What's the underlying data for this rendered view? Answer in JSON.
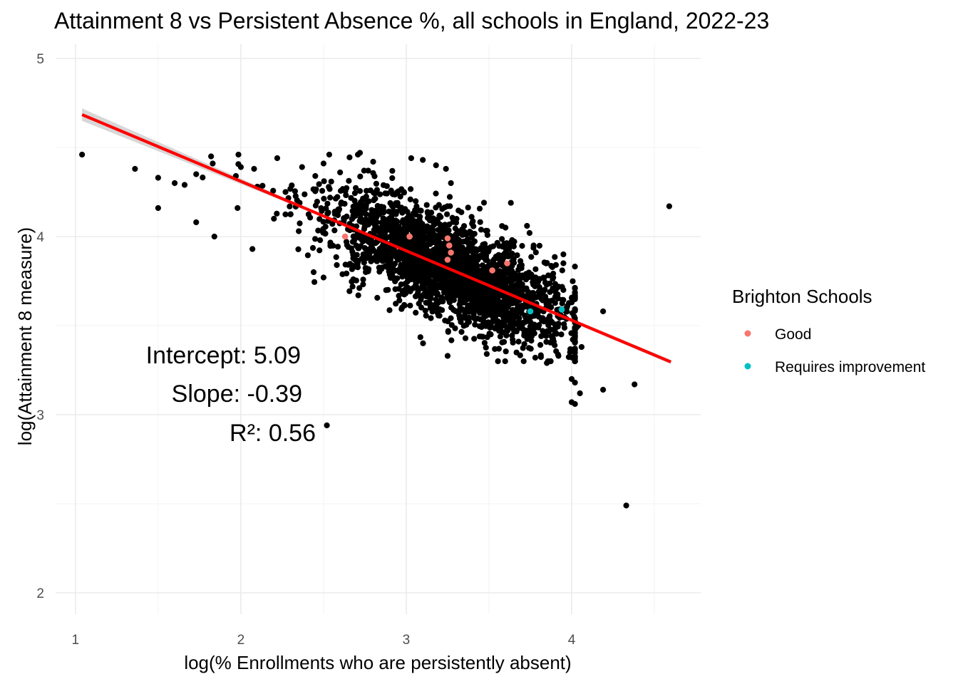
{
  "chart_data": {
    "type": "scatter",
    "title": "Attainment 8 vs Persistent Absence %, all schools in England, 2022-23",
    "xlabel": "log(% Enrollments who are persistently absent)",
    "ylabel": "log(Attainment 8 measure)",
    "xlim": [
      0.88,
      4.78
    ],
    "ylim": [
      1.88,
      5.08
    ],
    "x_ticks": [
      "1",
      "2",
      "3",
      "4"
    ],
    "y_ticks": [
      "2",
      "3",
      "4",
      "5"
    ],
    "x_tick_values": [
      1,
      2,
      3,
      4
    ],
    "y_tick_values": [
      2,
      3,
      4,
      5
    ],
    "grid": true,
    "legend": {
      "title": "Brighton Schools",
      "position": "right",
      "entries": [
        {
          "label": "Good",
          "color": "#F8766D"
        },
        {
          "label": "Requires improvement",
          "color": "#00BFC4"
        }
      ]
    },
    "regression": {
      "intercept": 5.09,
      "slope": -0.39,
      "x_range": [
        1.04,
        4.6
      ],
      "color": "#ff0000",
      "band_color": "#bdbdbd"
    },
    "annotations": {
      "intercept": "Intercept: 5.09",
      "slope": "Slope: -0.39",
      "r2": "R²: 0.56"
    },
    "cloud": {
      "n": 2600,
      "x_mean": 3.28,
      "x_sd": 0.36,
      "residual_sd": 0.14,
      "point_color": "#000000"
    },
    "outliers": [
      [
        1.04,
        4.46
      ],
      [
        1.36,
        4.38
      ],
      [
        1.5,
        4.33
      ],
      [
        1.5,
        4.16
      ],
      [
        1.6,
        4.3
      ],
      [
        1.66,
        4.29
      ],
      [
        1.73,
        4.35
      ],
      [
        1.82,
        4.45
      ],
      [
        1.83,
        4.41
      ],
      [
        1.73,
        4.08
      ],
      [
        1.84,
        4.0
      ],
      [
        1.97,
        4.34
      ],
      [
        2.0,
        4.39
      ],
      [
        2.08,
        4.38
      ],
      [
        2.1,
        4.28
      ],
      [
        2.22,
        4.44
      ],
      [
        2.07,
        3.93
      ],
      [
        2.37,
        4.39
      ],
      [
        2.5,
        4.41
      ],
      [
        2.44,
        3.8
      ],
      [
        2.5,
        3.77
      ],
      [
        2.52,
        2.94
      ],
      [
        2.45,
        4.34
      ],
      [
        2.72,
        4.47
      ],
      [
        2.77,
        4.37
      ],
      [
        2.8,
        4.42
      ],
      [
        2.6,
        4.36
      ],
      [
        3.03,
        4.44
      ],
      [
        3.1,
        4.43
      ],
      [
        3.18,
        4.4
      ],
      [
        3.24,
        4.38
      ],
      [
        3.27,
        4.3
      ],
      [
        3.47,
        4.19
      ],
      [
        3.6,
        4.05
      ],
      [
        3.64,
        3.98
      ],
      [
        3.73,
        4.06
      ],
      [
        3.77,
        3.95
      ],
      [
        3.83,
        3.77
      ],
      [
        3.95,
        3.9
      ],
      [
        3.95,
        3.85
      ],
      [
        3.95,
        3.7
      ],
      [
        3.97,
        3.6
      ],
      [
        4.03,
        3.49
      ],
      [
        4.04,
        3.5
      ],
      [
        4.06,
        3.38
      ],
      [
        3.99,
        3.35
      ],
      [
        4.0,
        3.2
      ],
      [
        4.02,
        3.18
      ],
      [
        4.05,
        3.12
      ],
      [
        4.0,
        3.07
      ],
      [
        4.02,
        3.06
      ],
      [
        4.19,
        3.58
      ],
      [
        4.19,
        3.14
      ],
      [
        4.38,
        3.17
      ],
      [
        4.33,
        2.49
      ],
      [
        4.59,
        4.17
      ],
      [
        3.25,
        3.33
      ],
      [
        2.71,
        3.67
      ],
      [
        3.92,
        3.33
      ],
      [
        3.85,
        3.29
      ],
      [
        2.68,
        3.76
      ],
      [
        2.58,
        3.84
      ],
      [
        2.35,
        4.03
      ],
      [
        2.2,
        4.1
      ],
      [
        2.27,
        4.25
      ],
      [
        1.98,
        4.16
      ],
      [
        3.56,
        3.37
      ],
      [
        3.71,
        3.3
      ],
      [
        3.78,
        3.32
      ]
    ],
    "series": [
      {
        "name": "Good",
        "color": "#F8766D",
        "points": [
          [
            2.63,
            4.0
          ],
          [
            3.02,
            4.0
          ],
          [
            3.25,
            3.99
          ],
          [
            3.26,
            3.95
          ],
          [
            3.27,
            3.91
          ],
          [
            3.25,
            3.87
          ],
          [
            3.52,
            3.81
          ],
          [
            3.61,
            3.85
          ]
        ]
      },
      {
        "name": "Requires improvement",
        "color": "#00BFC4",
        "points": [
          [
            3.75,
            3.58
          ],
          [
            3.94,
            3.59
          ]
        ]
      }
    ]
  }
}
